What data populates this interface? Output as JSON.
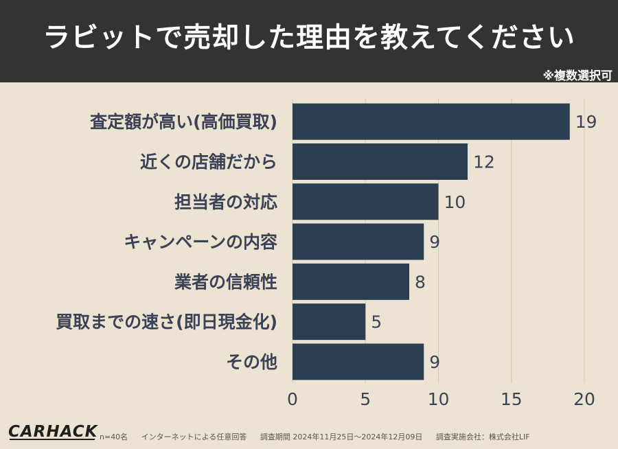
{
  "header": {
    "title": "ラビットで売却した理由を教えてください",
    "note": "※複数選択可"
  },
  "colors": {
    "bar": "#2c3e52",
    "header_bg": "#333333",
    "background": "#ece3d2",
    "label": "#3b4256",
    "grid": "#d2c9b6"
  },
  "chart_data": {
    "type": "bar",
    "orientation": "horizontal",
    "categories": [
      "査定額が高い(高価買取)",
      "近くの店舗だから",
      "担当者の対応",
      "キャンペーンの内容",
      "業者の信頼性",
      "買取までの速さ(即日現金化)",
      "その他"
    ],
    "values": [
      19,
      12,
      10,
      9,
      8,
      5,
      9
    ],
    "xlim": [
      0,
      20
    ],
    "xticks": [
      0,
      5,
      10,
      15,
      20
    ],
    "grid": true
  },
  "footer": {
    "logo": "CARHACK",
    "sample": "n=40名",
    "method": "インターネットによる任意回答",
    "period": "調査期間 2024年11月25日～2024年12月09日",
    "org": "調査実施会社：株式会社LIF"
  }
}
